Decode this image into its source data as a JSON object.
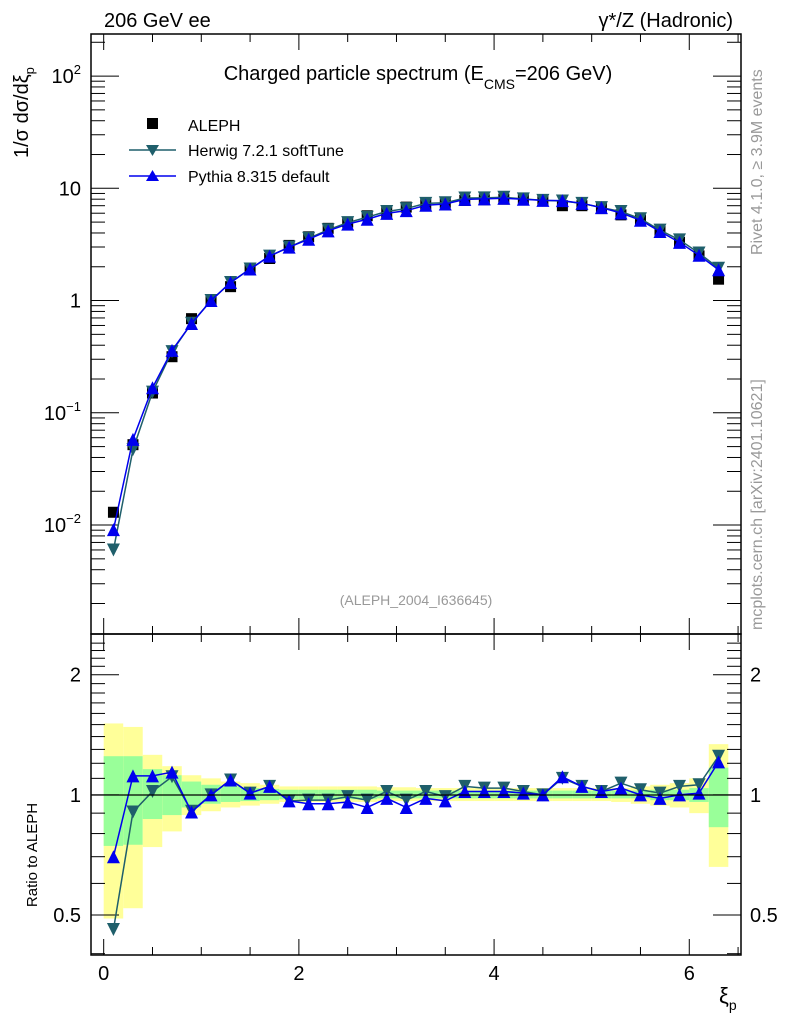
{
  "header": {
    "left": "206 GeV ee",
    "right": "γ*/Z (Hadronic)"
  },
  "side_text": {
    "rivet": "Rivet 4.1.0, ≥ 3.9M events",
    "mcplots": "mcplots.cern.ch [arXiv:2401.10621]"
  },
  "colors": {
    "data": "#000000",
    "herwig": "#1f5f6b",
    "pythia": "#0000ee",
    "band_stat": "#99ff99",
    "band_total": "#ffff99"
  },
  "chart_data": [
    {
      "type": "line",
      "title": "Charged particle spectrum (E",
      "title_sub": "CMS",
      "title_end": "=206 GeV)",
      "analysis_label": "(ALEPH_2004_I636645)",
      "ylabel": "1/σ  dσ/dξ",
      "ylabel_sub": "p",
      "yscale": "log",
      "ylim": [
        0.00107,
        237
      ],
      "xlim": [
        -0.13,
        6.53
      ],
      "y_tick_labels": [
        {
          "value": 100,
          "label": "10",
          "exp": "2"
        },
        {
          "value": 10,
          "label": "10",
          "exp": ""
        },
        {
          "value": 1,
          "label": "1",
          "exp": ""
        },
        {
          "value": 0.1,
          "label": "10",
          "exp": "−1"
        },
        {
          "value": 0.01,
          "label": "10",
          "exp": "−2"
        }
      ],
      "legend": {
        "placement": "top-left",
        "entries": [
          "ALEPH",
          "Herwig 7.2.1 softTune",
          "Pythia 8.315 default"
        ]
      },
      "x": [
        0.1,
        0.3,
        0.5,
        0.7,
        0.9,
        1.1,
        1.3,
        1.5,
        1.7,
        1.9,
        2.1,
        2.3,
        2.5,
        2.7,
        2.9,
        3.1,
        3.3,
        3.5,
        3.7,
        3.9,
        4.1,
        4.3,
        4.5,
        4.7,
        4.9,
        5.1,
        5.3,
        5.5,
        5.7,
        5.9,
        6.1,
        6.3
      ],
      "series": [
        {
          "name": "ALEPH",
          "values": [
            0.013,
            0.052,
            0.15,
            0.316,
            0.69,
            1.0,
            1.33,
            1.89,
            2.37,
            3.1,
            3.7,
            4.4,
            5.0,
            5.7,
            6.1,
            6.8,
            7.2,
            7.5,
            7.8,
            7.9,
            8.0,
            7.9,
            7.8,
            7.0,
            7.0,
            6.6,
            5.8,
            5.2,
            4.2,
            3.3,
            2.5,
            1.55
          ]
        },
        {
          "name": "Herwig 7.2.1 softTune",
          "values": [
            0.006,
            0.047,
            0.153,
            0.351,
            0.628,
            1.0,
            1.45,
            1.91,
            2.49,
            2.99,
            3.59,
            4.27,
            4.95,
            5.53,
            6.22,
            6.6,
            7.34,
            7.43,
            8.19,
            8.22,
            8.32,
            8.06,
            7.8,
            7.7,
            7.35,
            6.73,
            6.21,
            5.36,
            4.24,
            3.47,
            2.65,
            1.94
          ]
        },
        {
          "name": "Pythia 8.315 default",
          "values": [
            0.0091,
            0.058,
            0.167,
            0.36,
            0.625,
            1.0,
            1.45,
            1.91,
            2.49,
            2.99,
            3.52,
            4.18,
            4.8,
            5.3,
            5.98,
            6.32,
            7.06,
            7.25,
            7.96,
            8.06,
            8.16,
            7.98,
            7.8,
            7.77,
            7.35,
            6.73,
            6.03,
            5.2,
            4.12,
            3.3,
            2.53,
            1.88
          ]
        }
      ]
    },
    {
      "type": "line",
      "ylabel": "Ratio to ALEPH",
      "xlabel": "ξ",
      "xlabel_sub": "p",
      "yscale": "log",
      "ylim": [
        0.397,
        2.53
      ],
      "y_tick_labels": [
        {
          "value": 2,
          "label": "2"
        },
        {
          "value": 1,
          "label": "1"
        },
        {
          "value": 0.5,
          "label": "0.5"
        }
      ],
      "x_tick_labels": [
        {
          "value": 0,
          "label": "0"
        },
        {
          "value": 2,
          "label": "2"
        },
        {
          "value": 4,
          "label": "4"
        },
        {
          "value": 6,
          "label": "6"
        }
      ],
      "bin_width": 0.2,
      "band_total": {
        "upper": [
          1.51,
          1.48,
          1.26,
          1.18,
          1.12,
          1.1,
          1.08,
          1.07,
          1.06,
          1.05,
          1.05,
          1.05,
          1.05,
          1.05,
          1.045,
          1.045,
          1.04,
          1.04,
          1.04,
          1.04,
          1.04,
          1.04,
          1.04,
          1.04,
          1.04,
          1.04,
          1.04,
          1.05,
          1.06,
          1.07,
          1.1,
          1.34
        ],
        "lower": [
          0.49,
          0.52,
          0.74,
          0.81,
          0.89,
          0.91,
          0.93,
          0.94,
          0.95,
          0.96,
          0.96,
          0.96,
          0.96,
          0.96,
          0.965,
          0.965,
          0.965,
          0.965,
          0.965,
          0.965,
          0.965,
          0.965,
          0.965,
          0.965,
          0.965,
          0.965,
          0.96,
          0.95,
          0.94,
          0.93,
          0.9,
          0.66
        ]
      },
      "band_stat": {
        "upper": [
          1.25,
          1.25,
          1.16,
          1.12,
          1.08,
          1.06,
          1.05,
          1.04,
          1.035,
          1.03,
          1.03,
          1.03,
          1.03,
          1.03,
          1.025,
          1.025,
          1.025,
          1.025,
          1.025,
          1.025,
          1.025,
          1.025,
          1.025,
          1.025,
          1.025,
          1.025,
          1.025,
          1.025,
          1.03,
          1.03,
          1.04,
          1.17
        ],
        "lower": [
          0.745,
          0.75,
          0.87,
          0.89,
          0.93,
          0.95,
          0.96,
          0.965,
          0.97,
          0.975,
          0.975,
          0.975,
          0.975,
          0.975,
          0.98,
          0.98,
          0.98,
          0.98,
          0.98,
          0.98,
          0.98,
          0.98,
          0.98,
          0.98,
          0.98,
          0.98,
          0.98,
          0.98,
          0.97,
          0.97,
          0.96,
          0.83
        ]
      },
      "series": [
        {
          "name": "Herwig 7.2.1 softTune",
          "values": [
            0.46,
            0.906,
            1.02,
            1.11,
            0.91,
            1.0,
            1.09,
            1.01,
            1.05,
            0.966,
            0.97,
            0.97,
            0.99,
            0.97,
            1.02,
            0.97,
            1.02,
            0.99,
            1.05,
            1.04,
            1.04,
            1.02,
            1.0,
            1.1,
            1.05,
            1.02,
            1.07,
            1.03,
            1.01,
            1.05,
            1.06,
            1.25
          ]
        },
        {
          "name": "Pythia 8.315 default",
          "values": [
            0.7,
            1.116,
            1.116,
            1.14,
            0.906,
            1.0,
            1.09,
            1.01,
            1.05,
            0.966,
            0.95,
            0.95,
            0.96,
            0.93,
            0.98,
            0.93,
            0.98,
            0.966,
            1.02,
            1.02,
            1.02,
            1.01,
            1.0,
            1.11,
            1.05,
            1.02,
            1.04,
            1.0,
            0.98,
            1.0,
            1.01,
            1.21
          ]
        }
      ]
    }
  ]
}
